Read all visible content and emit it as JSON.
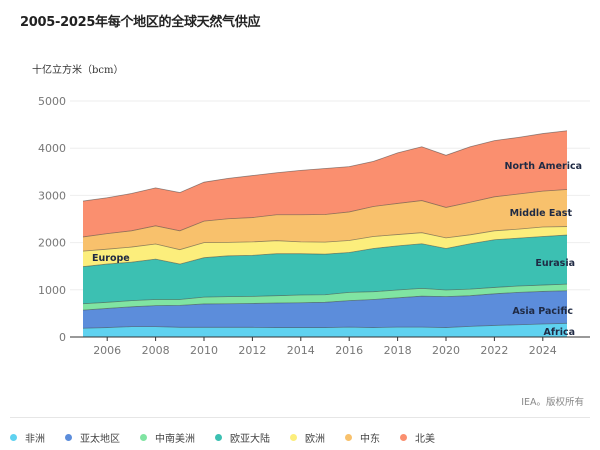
{
  "title": "2005-2025年每个地区的全球天然气供应",
  "credit": "IEA。版权所有",
  "chart_data": {
    "type": "area",
    "stacked": true,
    "title": "2005-2025年每个地区的全球天然气供应",
    "ylabel": "十亿立方米（bcm）",
    "xlabel": "",
    "ylim": [
      0,
      5000
    ],
    "yticks": [
      0,
      1000,
      2000,
      3000,
      4000,
      5000
    ],
    "xticks": [
      2006,
      2008,
      2010,
      2012,
      2014,
      2016,
      2018,
      2020,
      2022,
      2024
    ],
    "grid": true,
    "legend_position": "bottom",
    "x": [
      2005,
      2006,
      2007,
      2008,
      2009,
      2010,
      2011,
      2012,
      2013,
      2014,
      2015,
      2016,
      2017,
      2018,
      2019,
      2020,
      2021,
      2022,
      2023,
      2024,
      2025
    ],
    "series": [
      {
        "name": "非洲",
        "label": "Africa",
        "color": "#5fd2f0",
        "values": [
          185,
          200,
          220,
          220,
          205,
          205,
          205,
          205,
          200,
          200,
          200,
          210,
          200,
          210,
          210,
          200,
          225,
          245,
          260,
          275,
          290
        ]
      },
      {
        "name": "亚太地区",
        "label": "Asia Pacific",
        "color": "#5c8ddb",
        "values": [
          385,
          405,
          420,
          445,
          465,
          495,
          500,
          505,
          520,
          525,
          535,
          560,
          595,
          620,
          655,
          655,
          650,
          670,
          685,
          690,
          690
        ]
      },
      {
        "name": "中南美洲",
        "label": "",
        "color": "#80e4a2",
        "values": [
          135,
          130,
          130,
          130,
          125,
          145,
          150,
          150,
          155,
          165,
          160,
          175,
          165,
          165,
          165,
          140,
          140,
          135,
          135,
          135,
          140
        ]
      },
      {
        "name": "欧亚大陆",
        "label": "Eurasia",
        "color": "#3cc0b2",
        "values": [
          785,
          810,
          815,
          855,
          750,
          835,
          865,
          870,
          890,
          875,
          860,
          845,
          915,
          935,
          945,
          880,
          960,
          1010,
          1015,
          1030,
          1040
        ]
      },
      {
        "name": "欧洲",
        "label": "Europe",
        "color": "#fcee7c",
        "values": [
          330,
          315,
          320,
          320,
          305,
          320,
          285,
          285,
          275,
          250,
          255,
          255,
          255,
          240,
          235,
          225,
          190,
          190,
          190,
          200,
          180
        ]
      },
      {
        "name": "中东",
        "label": "Middle East",
        "color": "#f8c16c",
        "values": [
          300,
          330,
          345,
          385,
          400,
          455,
          500,
          515,
          550,
          575,
          585,
          605,
          635,
          660,
          680,
          645,
          690,
          720,
          745,
          760,
          785
        ]
      },
      {
        "name": "北美",
        "label": "North America",
        "color": "#fa8f6f",
        "values": [
          760,
          760,
          790,
          805,
          810,
          825,
          855,
          890,
          890,
          940,
          975,
          960,
          955,
          1070,
          1140,
          1105,
          1175,
          1190,
          1200,
          1220,
          1245
        ]
      }
    ]
  }
}
